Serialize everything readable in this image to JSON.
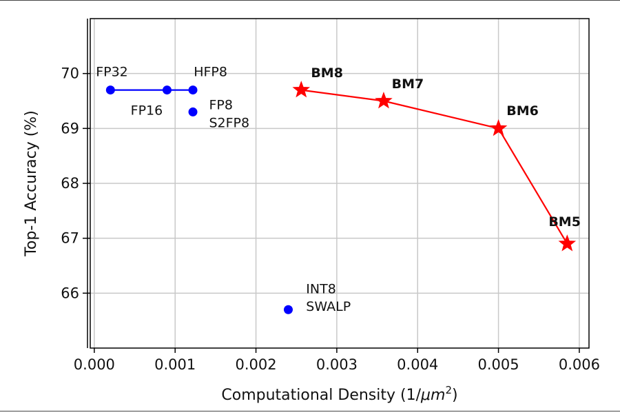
{
  "chart_data": {
    "type": "scatter",
    "title": "",
    "xlabel": "Computational Density (1/μm²)",
    "xlabel_text": "Computational Density (1/",
    "xlabel_unit_italic": "μm",
    "xlabel_sup": "2",
    "xlabel_close": ")",
    "ylabel": "Top-1 Accuracy (%)",
    "xlim": [
      -5e-05,
      0.00612
    ],
    "ylim": [
      65.0,
      71.0
    ],
    "xticks": [
      0.0,
      0.001,
      0.002,
      0.003,
      0.004,
      0.005,
      0.006
    ],
    "xtick_labels": [
      "0.000",
      "0.001",
      "0.002",
      "0.003",
      "0.004",
      "0.005",
      "0.006"
    ],
    "yticks": [
      66,
      67,
      68,
      69,
      70
    ],
    "ytick_labels": [
      "66",
      "67",
      "68",
      "69",
      "70"
    ],
    "grid": true,
    "colors": {
      "blue_series": "#0000ff",
      "red_series": "#ff0000"
    },
    "series": [
      {
        "marker": "circle",
        "color": "#0000ff",
        "connected": true,
        "points": [
          {
            "x": 0.0002,
            "y": 69.7
          },
          {
            "x": 0.0009,
            "y": 69.7
          },
          {
            "x": 0.00122,
            "y": 69.7
          }
        ]
      },
      {
        "marker": "circle",
        "color": "#0000ff",
        "connected": false,
        "points": [
          {
            "x": 0.00122,
            "y": 69.3
          },
          {
            "x": 0.0024,
            "y": 65.7
          }
        ]
      },
      {
        "marker": "star",
        "color": "#ff0000",
        "connected": true,
        "points": [
          {
            "x": 0.00256,
            "y": 69.7
          },
          {
            "x": 0.00358,
            "y": 69.5
          },
          {
            "x": 0.005,
            "y": 69.0
          },
          {
            "x": 0.00585,
            "y": 66.9
          }
        ]
      }
    ],
    "annotations": [
      {
        "text": "FP32",
        "x": 2e-05,
        "y": 69.95,
        "style": "normal"
      },
      {
        "text": "HFP8",
        "x": 0.00123,
        "y": 69.95,
        "style": "normal"
      },
      {
        "text": "FP16",
        "x": 0.00045,
        "y": 69.25,
        "style": "normal"
      },
      {
        "text": "FP8",
        "x": 0.00142,
        "y": 69.35,
        "style": "normal"
      },
      {
        "text": "S2FP8",
        "x": 0.00142,
        "y": 69.02,
        "style": "normal"
      },
      {
        "text": "INT8",
        "x": 0.00262,
        "y": 66.0,
        "style": "normal"
      },
      {
        "text": "SWALP",
        "x": 0.00262,
        "y": 65.68,
        "style": "normal"
      },
      {
        "text": "BM8",
        "x": 0.00268,
        "y": 69.93,
        "style": "bold"
      },
      {
        "text": "BM7",
        "x": 0.00368,
        "y": 69.73,
        "style": "bold"
      },
      {
        "text": "BM6",
        "x": 0.0051,
        "y": 69.24,
        "style": "bold"
      },
      {
        "text": "BM5",
        "x": 0.00562,
        "y": 67.22,
        "style": "bold"
      }
    ]
  }
}
